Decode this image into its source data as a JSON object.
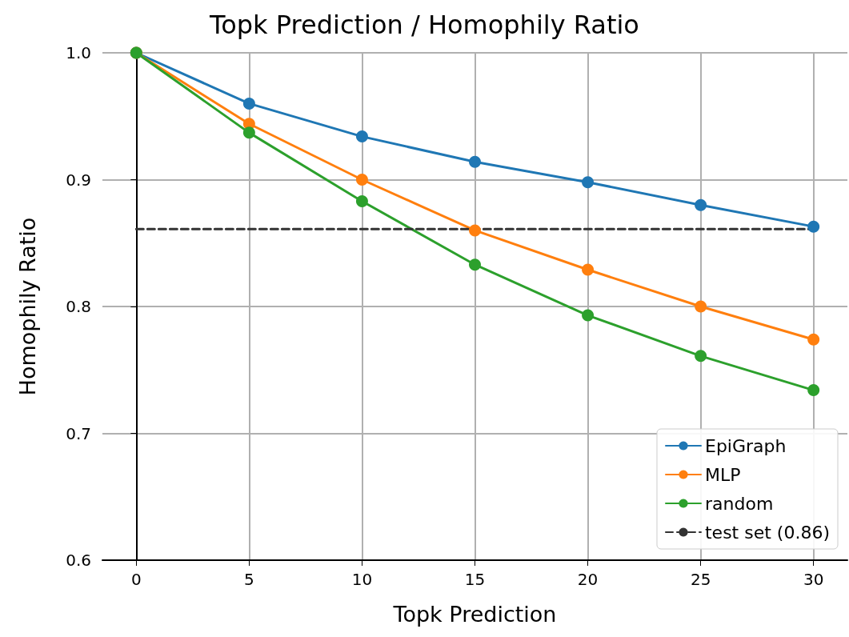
{
  "chart_data": {
    "type": "line",
    "title": "Topk Prediction / Homophily Ratio",
    "xlabel": "Topk Prediction",
    "ylabel": "Homophily Ratio",
    "x": [
      0,
      5,
      10,
      15,
      20,
      25,
      30
    ],
    "series": [
      {
        "name": "EpiGraph",
        "color": "#1f77b4",
        "values": [
          1.0,
          0.96,
          0.934,
          0.914,
          0.898,
          0.88,
          0.863
        ]
      },
      {
        "name": "MLP",
        "color": "#ff7f0e",
        "values": [
          1.0,
          0.944,
          0.9,
          0.86,
          0.829,
          0.8,
          0.774
        ]
      },
      {
        "name": "random",
        "color": "#2ca02c",
        "values": [
          1.0,
          0.937,
          0.883,
          0.833,
          0.793,
          0.761,
          0.734
        ]
      },
      {
        "name": "test set (0.86)",
        "color": "#333333",
        "x": [
          0,
          30
        ],
        "values": [
          0.861,
          0.861
        ],
        "line_style": "dashed",
        "marker": "none"
      }
    ],
    "xlim": [
      -1.5,
      31.5
    ],
    "xticks": [
      0,
      5,
      10,
      15,
      20,
      25,
      30
    ],
    "ylim": [
      0.6,
      1.0
    ],
    "yticks": [
      0.6,
      0.7,
      0.8,
      0.9,
      {
        "value": 1.0,
        "label": "1.0"
      }
    ],
    "grid": true,
    "legend": "bottom right",
    "marker": "circle",
    "line_style": "solid"
  }
}
